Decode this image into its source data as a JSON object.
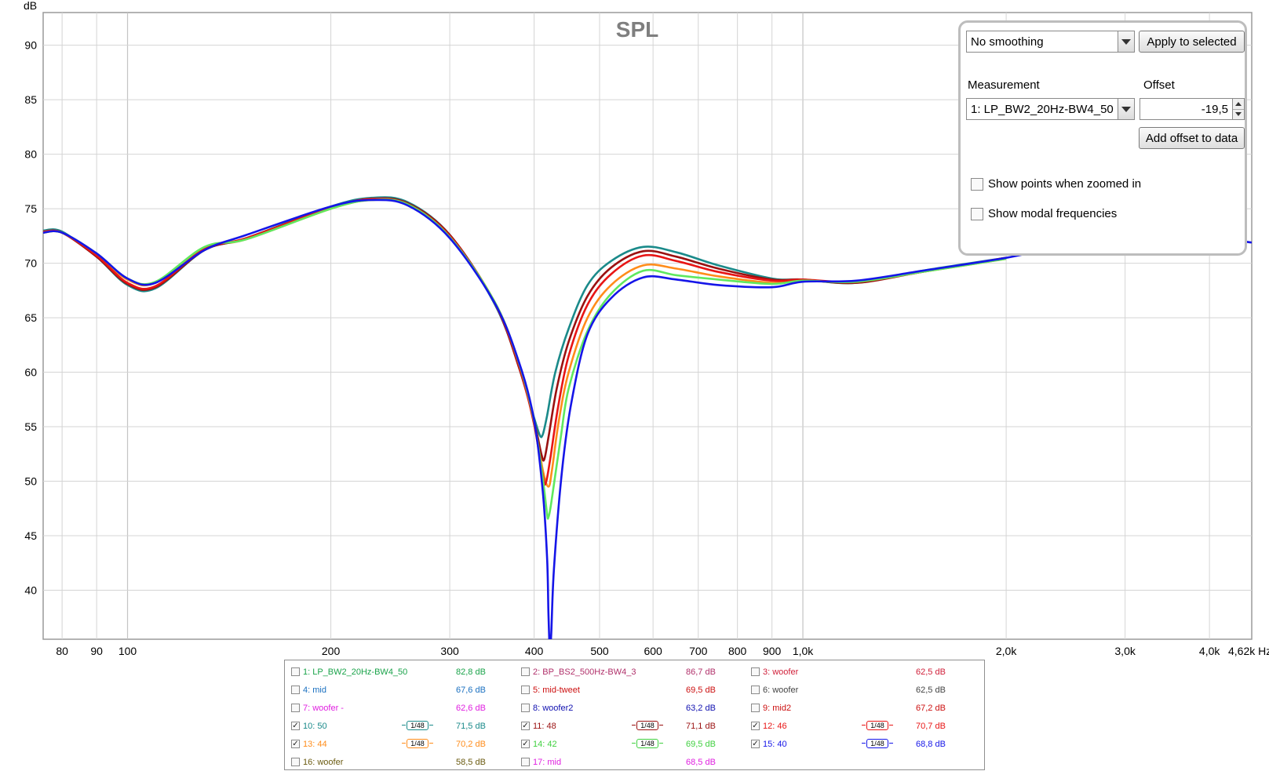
{
  "chart_data": {
    "type": "line",
    "title": "SPL",
    "ylabel": "dB",
    "xunit": "Hz",
    "xscale": "log",
    "xlim": [
      75,
      4620
    ],
    "ylim": [
      35.5,
      93
    ],
    "grid": true,
    "yticks": [
      40,
      45,
      50,
      55,
      60,
      65,
      70,
      75,
      80,
      85,
      90
    ],
    "xticks": [
      {
        "v": 80,
        "label": "80"
      },
      {
        "v": 90,
        "label": "90"
      },
      {
        "v": 100,
        "label": "100"
      },
      {
        "v": 200,
        "label": "200"
      },
      {
        "v": 300,
        "label": "300"
      },
      {
        "v": 400,
        "label": "400"
      },
      {
        "v": 500,
        "label": "500"
      },
      {
        "v": 600,
        "label": "600"
      },
      {
        "v": 700,
        "label": "700"
      },
      {
        "v": 800,
        "label": "800"
      },
      {
        "v": 900,
        "label": "900"
      },
      {
        "v": 1000,
        "label": "1,0k"
      },
      {
        "v": 2000,
        "label": "2,0k"
      },
      {
        "v": 3000,
        "label": "3,0k"
      },
      {
        "v": 4000,
        "label": "4,0k"
      },
      {
        "v": 4620,
        "label": "4,62k Hz"
      }
    ],
    "xgrid": [
      80,
      90,
      100,
      200,
      300,
      400,
      500,
      600,
      700,
      800,
      900,
      1000,
      2000,
      3000,
      4000
    ],
    "series": [
      {
        "name": "13: 44",
        "color": "#ff8c1a",
        "x": [
          75,
          80,
          90,
          100,
          110,
          130,
          150,
          200,
          230,
          260,
          300,
          350,
          380,
          400,
          412,
          420,
          425,
          435,
          450,
          480,
          520,
          580,
          650,
          750,
          900,
          1000,
          1200,
          1500,
          2000
        ],
        "y": [
          72.8,
          72.8,
          70.8,
          68.5,
          68.2,
          71.4,
          72.2,
          75.0,
          75.8,
          75.4,
          72.5,
          66.4,
          60.8,
          55.5,
          51.0,
          49.5,
          51.0,
          55.5,
          60.0,
          65.0,
          68.0,
          69.8,
          69.5,
          68.8,
          68.2,
          68.4,
          68.3,
          69.2,
          70.4
        ]
      },
      {
        "name": "10: 50",
        "color": "#1a8a8a",
        "x": [
          75,
          80,
          90,
          100,
          110,
          130,
          150,
          200,
          230,
          260,
          300,
          350,
          380,
          400,
          408,
          412,
          418,
          430,
          450,
          480,
          520,
          580,
          650,
          750,
          900,
          1000,
          1200,
          1500,
          2000
        ],
        "y": [
          73.0,
          72.9,
          70.6,
          68.0,
          67.7,
          71.2,
          72.3,
          75.2,
          76.0,
          75.6,
          72.6,
          66.2,
          60.5,
          55.8,
          54.2,
          54.3,
          56.0,
          60.0,
          64.0,
          68.0,
          70.2,
          71.5,
          71.0,
          69.8,
          68.6,
          68.5,
          68.2,
          69.3,
          70.5
        ]
      },
      {
        "name": "11: 48",
        "color": "#9a1010",
        "x": [
          75,
          80,
          90,
          100,
          110,
          130,
          150,
          200,
          230,
          260,
          300,
          350,
          380,
          400,
          410,
          414,
          420,
          432,
          450,
          480,
          520,
          580,
          650,
          750,
          900,
          1000,
          1200,
          1500,
          2000
        ],
        "y": [
          72.9,
          72.8,
          70.6,
          68.1,
          67.8,
          71.2,
          72.3,
          75.1,
          75.9,
          75.5,
          72.6,
          66.3,
          60.4,
          55.5,
          52.5,
          52.0,
          54.0,
          58.5,
          62.8,
          67.0,
          69.6,
          71.1,
          70.6,
          69.5,
          68.5,
          68.5,
          68.2,
          69.2,
          70.5
        ]
      },
      {
        "name": "12: 46",
        "color": "#e81515",
        "x": [
          75,
          80,
          90,
          100,
          110,
          130,
          150,
          200,
          230,
          260,
          300,
          350,
          380,
          400,
          412,
          416,
          422,
          434,
          450,
          480,
          520,
          580,
          650,
          750,
          900,
          1000,
          1200,
          1500,
          2000
        ],
        "y": [
          72.9,
          72.8,
          70.7,
          68.2,
          67.9,
          71.3,
          72.3,
          75.1,
          75.9,
          75.4,
          72.5,
          66.3,
          60.6,
          55.2,
          50.5,
          49.8,
          51.8,
          56.8,
          61.5,
          66.2,
          69.0,
          70.7,
          70.2,
          69.2,
          68.4,
          68.5,
          68.3,
          69.2,
          70.5
        ]
      },
      {
        "name": "14: 42",
        "color": "#5fe85f",
        "x": [
          75,
          80,
          90,
          100,
          110,
          130,
          150,
          200,
          230,
          260,
          300,
          350,
          380,
          400,
          412,
          418,
          420,
          424,
          438,
          450,
          480,
          520,
          580,
          650,
          750,
          900,
          1000,
          1200,
          1500,
          2000
        ],
        "y": [
          72.8,
          72.8,
          70.9,
          68.6,
          68.3,
          71.5,
          72.2,
          75.0,
          75.8,
          75.4,
          72.4,
          66.4,
          60.8,
          55.5,
          50.2,
          47.0,
          46.7,
          48.0,
          54.0,
          58.5,
          63.8,
          67.2,
          69.3,
          68.9,
          68.5,
          68.1,
          68.4,
          68.3,
          69.2,
          70.4
        ]
      },
      {
        "name": "15: 40",
        "color": "#1515e8",
        "x": [
          75,
          80,
          90,
          100,
          110,
          130,
          150,
          200,
          230,
          260,
          300,
          350,
          380,
          400,
          412,
          418,
          420,
          422,
          424,
          428,
          440,
          455,
          480,
          520,
          580,
          650,
          750,
          900,
          1000,
          1200,
          1500,
          2000,
          2500,
          3000,
          3200,
          3500,
          4000,
          4620
        ],
        "y": [
          72.8,
          72.8,
          70.9,
          68.6,
          68.2,
          71.2,
          72.6,
          75.2,
          75.8,
          75.3,
          72.3,
          66.3,
          60.9,
          55.6,
          49.0,
          43.0,
          38.0,
          34.5,
          36.0,
          42.0,
          51.0,
          57.5,
          63.5,
          66.8,
          68.7,
          68.5,
          68.0,
          67.8,
          68.3,
          68.4,
          69.3,
          70.5,
          71.8,
          72.7,
          72.8,
          72.7,
          72.4,
          71.9
        ]
      }
    ]
  },
  "panel": {
    "smoothing_value": "No  smoothing",
    "apply_label": "Apply to selected",
    "measurement_label": "Measurement",
    "measurement_value": "1: LP_BW2_20Hz-BW4_50",
    "offset_label": "Offset",
    "offset_value": "-19,5",
    "add_offset_label": "Add offset to data",
    "show_points_label": "Show points when zoomed in",
    "show_modal_label": "Show modal frequencies"
  },
  "legend": {
    "rows": [
      [
        {
          "name": "1: LP_BW2_20Hz-BW4_50",
          "value": "82,8 dB",
          "checked": false,
          "smoothing": "",
          "color": "#1aa34a"
        },
        {
          "name": "2: BP_BS2_500Hz-BW4_3",
          "value": "86,7 dB",
          "checked": false,
          "smoothing": "",
          "color": "#b0306a"
        },
        {
          "name": "3: woofer",
          "value": "62,5 dB",
          "checked": false,
          "smoothing": "",
          "color": "#d0203a"
        }
      ],
      [
        {
          "name": "4: mid",
          "value": "67,6 dB",
          "checked": false,
          "smoothing": "",
          "color": "#1a70c0"
        },
        {
          "name": "5: mid-tweet",
          "value": "69,5 dB",
          "checked": false,
          "smoothing": "",
          "color": "#cc1010"
        },
        {
          "name": "6: woofer",
          "value": "62,5 dB",
          "checked": false,
          "smoothing": "",
          "color": "#444444"
        }
      ],
      [
        {
          "name": "7: woofer -",
          "value": "62,6 dB",
          "checked": false,
          "smoothing": "",
          "color": "#e020e0"
        },
        {
          "name": "8: woofer2",
          "value": "63,2 dB",
          "checked": false,
          "smoothing": "",
          "color": "#1010b0"
        },
        {
          "name": "9: mid2",
          "value": "67,2 dB",
          "checked": false,
          "smoothing": "",
          "color": "#cc1010"
        }
      ],
      [
        {
          "name": "10: 50",
          "value": "71,5 dB",
          "checked": true,
          "smoothing": "1/48",
          "color": "#1a8a8a"
        },
        {
          "name": "11: 48",
          "value": "71,1 dB",
          "checked": true,
          "smoothing": "1/48",
          "color": "#9a1010"
        },
        {
          "name": "12: 46",
          "value": "70,7 dB",
          "checked": true,
          "smoothing": "1/48",
          "color": "#e81515"
        }
      ],
      [
        {
          "name": "13: 44",
          "value": "70,2 dB",
          "checked": true,
          "smoothing": "1/48",
          "color": "#ff8c1a"
        },
        {
          "name": "14: 42",
          "value": "69,5 dB",
          "checked": true,
          "smoothing": "1/48",
          "color": "#40d040"
        },
        {
          "name": "15: 40",
          "value": "68,8 dB",
          "checked": true,
          "smoothing": "1/48",
          "color": "#1515e8"
        }
      ],
      [
        {
          "name": "16: woofer",
          "value": "58,5 dB",
          "checked": false,
          "smoothing": "",
          "color": "#6a5a10"
        },
        {
          "name": "17: mid",
          "value": "68,5 dB",
          "checked": false,
          "smoothing": "",
          "color": "#e020e0"
        }
      ]
    ]
  }
}
